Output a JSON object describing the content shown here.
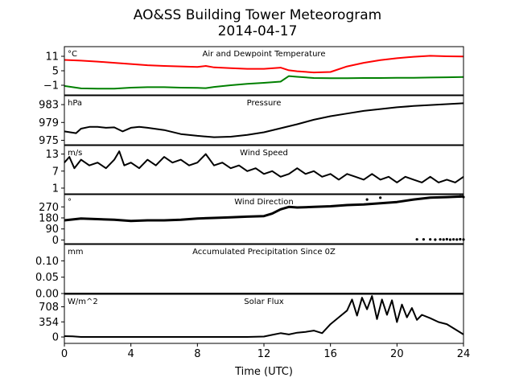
{
  "figure": {
    "title_line1": "AO&SS Building Tower Meteorogram",
    "title_line2": "2014-04-17",
    "xlabel": "Time (UTC)",
    "x_ticks": [
      0,
      4,
      8,
      12,
      16,
      20,
      24
    ],
    "xlim": [
      0,
      24
    ]
  },
  "chart_data": [
    {
      "type": "line",
      "title": "Air and Dewpoint Temperature",
      "unit": "°C",
      "ylim": [
        -5,
        15
      ],
      "y_ticks": [
        -1,
        5,
        11
      ],
      "y_tick_labels": [
        "−1",
        "5",
        "11"
      ],
      "x": [
        0,
        1,
        2,
        3,
        4,
        5,
        6,
        7,
        8,
        8.5,
        9,
        10,
        11,
        12,
        13,
        13.5,
        14,
        15,
        16,
        17,
        18,
        19,
        20,
        21,
        22,
        23,
        24
      ],
      "series": [
        {
          "color": "#ff0000",
          "values": [
            9.5,
            9.2,
            8.8,
            8.3,
            7.8,
            7.3,
            7.0,
            6.8,
            6.6,
            7.0,
            6.4,
            6.1,
            5.8,
            5.8,
            6.3,
            5.2,
            4.8,
            4.3,
            4.5,
            6.8,
            8.3,
            9.4,
            10.2,
            10.8,
            11.2,
            11.0,
            10.9
          ]
        },
        {
          "color": "#008000",
          "values": [
            -1.3,
            -2.3,
            -2.4,
            -2.4,
            -2.0,
            -1.8,
            -1.8,
            -2.0,
            -2.1,
            -2.2,
            -1.7,
            -1.0,
            -0.4,
            0.0,
            0.5,
            2.8,
            2.5,
            2.0,
            1.9,
            1.9,
            2.0,
            2.0,
            2.1,
            2.1,
            2.2,
            2.3,
            2.4
          ]
        }
      ]
    },
    {
      "type": "line",
      "title": "Pressure",
      "unit": "hPa",
      "ylim": [
        974,
        985
      ],
      "y_ticks": [
        975,
        979,
        983
      ],
      "y_tick_labels": [
        "975",
        "979",
        "983"
      ],
      "x": [
        0,
        0.7,
        1,
        1.5,
        2,
        2.5,
        3,
        3.5,
        4,
        4.5,
        5,
        6,
        7,
        8,
        9,
        10,
        11,
        12,
        13,
        14,
        15,
        16,
        17,
        18,
        19,
        20,
        21,
        22,
        23,
        24
      ],
      "series": [
        {
          "color": "#000000",
          "values": [
            977.0,
            976.6,
            977.6,
            978.0,
            978.0,
            977.8,
            977.9,
            977.0,
            977.8,
            978.0,
            977.8,
            977.3,
            976.4,
            976.0,
            975.7,
            975.8,
            976.2,
            976.8,
            977.7,
            978.6,
            979.6,
            980.4,
            981.0,
            981.6,
            982.0,
            982.4,
            982.7,
            982.9,
            983.1,
            983.3
          ]
        }
      ]
    },
    {
      "type": "line",
      "title": "Wind Speed",
      "unit": "m/s",
      "ylim": [
        -1,
        16
      ],
      "y_ticks": [
        1,
        7,
        13
      ],
      "y_tick_labels": [
        "1",
        "7",
        "13"
      ],
      "x": [
        0,
        0.3,
        0.6,
        1,
        1.5,
        2,
        2.5,
        3,
        3.3,
        3.6,
        4,
        4.5,
        5,
        5.5,
        6,
        6.5,
        7,
        7.5,
        8,
        8.5,
        9,
        9.5,
        10,
        10.5,
        11,
        11.5,
        12,
        12.5,
        13,
        13.5,
        14,
        14.5,
        15,
        15.5,
        16,
        16.5,
        17,
        17.5,
        18,
        18.5,
        19,
        19.5,
        20,
        20.5,
        21,
        21.5,
        22,
        22.5,
        23,
        23.5,
        24
      ],
      "series": [
        {
          "color": "#000000",
          "values": [
            10,
            12,
            8,
            11,
            9,
            10,
            8,
            11,
            14,
            9,
            10,
            8,
            11,
            9,
            12,
            10,
            11,
            9,
            10,
            13,
            9,
            10,
            8,
            9,
            7,
            8,
            6,
            7,
            5,
            6,
            8,
            6,
            7,
            5,
            6,
            4,
            6,
            5,
            4,
            6,
            4,
            5,
            3,
            5,
            4,
            3,
            5,
            3,
            4,
            3,
            5
          ]
        }
      ]
    },
    {
      "type": "scatter",
      "title": "Wind Direction",
      "unit": "°",
      "ylim": [
        -30,
        370
      ],
      "y_ticks": [
        0,
        90,
        180,
        270
      ],
      "y_tick_labels": [
        "0",
        "90",
        "180",
        "270"
      ],
      "x": [
        0,
        1,
        2,
        3,
        4,
        5,
        6,
        7,
        8,
        9,
        10,
        11,
        12,
        12.5,
        13,
        13.5,
        14,
        15,
        16,
        17,
        18,
        19,
        20,
        21,
        22,
        23,
        24
      ],
      "series": [
        {
          "color": "#000000",
          "values": [
            160,
            175,
            170,
            165,
            155,
            160,
            160,
            165,
            175,
            180,
            185,
            190,
            195,
            215,
            250,
            270,
            265,
            270,
            275,
            285,
            290,
            300,
            310,
            330,
            345,
            350,
            355
          ]
        }
      ],
      "outliers": {
        "x": [
          21.2,
          21.6,
          22.0,
          22.3,
          22.6,
          22.8,
          23.0,
          23.2,
          23.4,
          23.6,
          23.8,
          24.0,
          18.2,
          19.0,
          23.8,
          24.0
        ],
        "y": [
          5,
          5,
          5,
          3,
          5,
          4,
          6,
          3,
          5,
          4,
          6,
          4,
          330,
          345,
          355,
          350
        ]
      }
    },
    {
      "type": "line",
      "title": "Accumulated Precipitation Since 0Z",
      "unit": "mm",
      "ylim": [
        0,
        0.15
      ],
      "y_ticks": [
        0.0,
        0.05,
        0.1
      ],
      "y_tick_labels": [
        "0.00",
        "0.05",
        "0.10"
      ],
      "x": [
        0,
        24
      ],
      "series": [
        {
          "color": "#000000",
          "values": [
            0,
            0
          ]
        }
      ]
    },
    {
      "type": "line",
      "title": "Solar Flux",
      "unit": "W/m^2",
      "ylim": [
        -150,
        1000
      ],
      "y_ticks": [
        0,
        354,
        708
      ],
      "y_tick_labels": [
        "0",
        "354",
        "708"
      ],
      "x": [
        0,
        0.5,
        1,
        2,
        4,
        6,
        8,
        10,
        11,
        12,
        12.5,
        13,
        13.5,
        14,
        14.5,
        15,
        15.5,
        16,
        16.5,
        17,
        17.3,
        17.6,
        17.9,
        18.2,
        18.5,
        18.8,
        19.1,
        19.4,
        19.7,
        20,
        20.3,
        20.6,
        20.9,
        21.2,
        21.5,
        22,
        22.5,
        23,
        23.5,
        24
      ],
      "series": [
        {
          "color": "#000000",
          "values": [
            20,
            15,
            0,
            0,
            0,
            0,
            0,
            0,
            0,
            10,
            50,
            90,
            60,
            100,
            120,
            150,
            90,
            300,
            460,
            620,
            880,
            500,
            920,
            650,
            960,
            420,
            880,
            520,
            860,
            350,
            760,
            460,
            680,
            400,
            520,
            440,
            350,
            300,
            180,
            60
          ]
        }
      ]
    }
  ]
}
